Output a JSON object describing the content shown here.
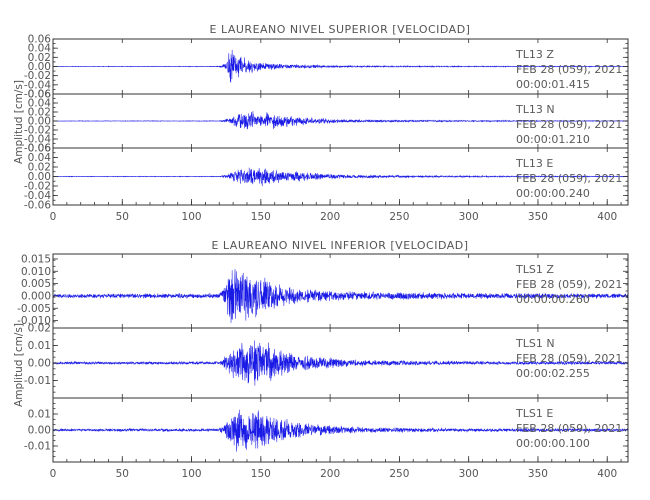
{
  "colors": {
    "trace": "#1a1ae6",
    "axis": "#333333",
    "text": "#555555"
  },
  "chart_data": [
    {
      "type": "line",
      "title": "E LAUREANO NIVEL SUPERIOR [VELOCIDAD]",
      "ylabel": "Amplitud [cm/s]",
      "xlabel": "",
      "xlim": [
        0,
        415
      ],
      "x_ticks": [
        0,
        50,
        100,
        150,
        200,
        250,
        300,
        350,
        400
      ],
      "traces": [
        {
          "ylim": [
            -0.06,
            0.06
          ],
          "y_ticks": [
            "0.06",
            "0.04",
            "0.02",
            "0.00",
            "-0.02",
            "-0.04",
            "-0.06"
          ],
          "station": "TL13",
          "component": "Z",
          "date": "FEB 28 (059), 2021",
          "time": "00:00:01.415",
          "envelope": [
            [
              0,
              0.0006
            ],
            [
              120,
              0.0008
            ],
            [
              125,
              0.008
            ],
            [
              128,
              0.05
            ],
            [
              132,
              0.035
            ],
            [
              140,
              0.018
            ],
            [
              150,
              0.01
            ],
            [
              170,
              0.005
            ],
            [
              210,
              0.002
            ],
            [
              300,
              0.0012
            ],
            [
              415,
              0.0008
            ]
          ],
          "seed": 11
        },
        {
          "ylim": [
            -0.06,
            0.06
          ],
          "y_ticks": [
            "0.06",
            "0.04",
            "0.02",
            "0.00",
            "-0.02",
            "-0.04",
            "-0.06"
          ],
          "station": "TL13",
          "component": "N",
          "date": "FEB 28 (059), 2021",
          "time": "00:00:01.210",
          "envelope": [
            [
              0,
              0.0006
            ],
            [
              120,
              0.0008
            ],
            [
              126,
              0.006
            ],
            [
              135,
              0.02
            ],
            [
              145,
              0.025
            ],
            [
              160,
              0.018
            ],
            [
              180,
              0.01
            ],
            [
              210,
              0.004
            ],
            [
              260,
              0.002
            ],
            [
              415,
              0.0008
            ]
          ],
          "seed": 23
        },
        {
          "ylim": [
            -0.06,
            0.06
          ],
          "y_ticks": [
            "0.06",
            "0.04",
            "0.02",
            "0.00",
            "-0.02",
            "-0.04",
            "-0.06"
          ],
          "station": "TL13",
          "component": "E",
          "date": "FEB 28 (059), 2021",
          "time": "00:00:00.240",
          "envelope": [
            [
              0,
              0.0006
            ],
            [
              120,
              0.0008
            ],
            [
              126,
              0.006
            ],
            [
              135,
              0.018
            ],
            [
              148,
              0.025
            ],
            [
              165,
              0.016
            ],
            [
              185,
              0.009
            ],
            [
              215,
              0.004
            ],
            [
              270,
              0.002
            ],
            [
              415,
              0.0008
            ]
          ],
          "seed": 37
        }
      ]
    },
    {
      "type": "line",
      "title": "E LAUREANO NIVEL INFERIOR [VELOCIDAD]",
      "ylabel": "Amplitud [cm/s]",
      "xlabel": "",
      "xlim": [
        0,
        415
      ],
      "x_ticks": [
        0,
        50,
        100,
        150,
        200,
        250,
        300,
        350,
        400
      ],
      "traces": [
        {
          "ylim": [
            -0.013,
            0.017
          ],
          "y_ticks": [
            "0.015",
            "0.010",
            "0.005",
            "0.000",
            "-0.005",
            "-0.010"
          ],
          "station": "TLS1",
          "component": "Z",
          "date": "FEB 28 (059), 2021",
          "time": "00:00:00.260",
          "envelope": [
            [
              0,
              0.0009
            ],
            [
              120,
              0.0011
            ],
            [
              124,
              0.004
            ],
            [
              128,
              0.013
            ],
            [
              140,
              0.011
            ],
            [
              150,
              0.009
            ],
            [
              170,
              0.004
            ],
            [
              210,
              0.002
            ],
            [
              300,
              0.0013
            ],
            [
              415,
              0.001
            ]
          ],
          "seed": 41
        },
        {
          "ylim": [
            -0.02,
            0.02
          ],
          "y_ticks": [
            "0.02",
            "0.01",
            "0.00",
            "-0.01"
          ],
          "station": "TLS1",
          "component": "N",
          "date": "FEB 28 (059), 2021",
          "time": "00:00:02.255",
          "envelope": [
            [
              0,
              0.0008
            ],
            [
              120,
              0.001
            ],
            [
              125,
              0.005
            ],
            [
              135,
              0.013
            ],
            [
              145,
              0.018
            ],
            [
              160,
              0.01
            ],
            [
              180,
              0.005
            ],
            [
              220,
              0.002
            ],
            [
              300,
              0.0012
            ],
            [
              415,
              0.0009
            ]
          ],
          "seed": 53
        },
        {
          "ylim": [
            -0.02,
            0.02
          ],
          "y_ticks": [
            "0.01",
            "0.00",
            "-0.01"
          ],
          "station": "TLS1",
          "component": "E",
          "date": "FEB 28 (059), 2021",
          "time": "00:00:00.100",
          "envelope": [
            [
              0,
              0.0008
            ],
            [
              120,
              0.001
            ],
            [
              125,
              0.006
            ],
            [
              133,
              0.016
            ],
            [
              145,
              0.015
            ],
            [
              160,
              0.009
            ],
            [
              180,
              0.005
            ],
            [
              220,
              0.002
            ],
            [
              300,
              0.0012
            ],
            [
              415,
              0.0009
            ]
          ],
          "seed": 67
        }
      ]
    }
  ]
}
